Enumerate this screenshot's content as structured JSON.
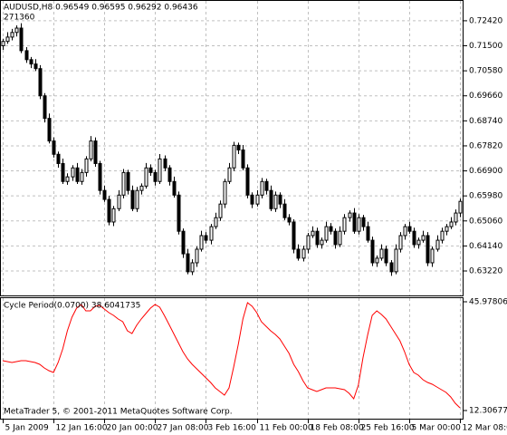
{
  "chart_data": [
    {
      "type": "candlestick",
      "title": "AUDUSD,H8 0.96549 0.96595 0.96292 0.96436",
      "subtitle": "271360",
      "color": "#000000",
      "up_fill": "#ffffff",
      "down_fill": "#000000",
      "grid": true,
      "xlim": [
        -0.59,
        99.78
      ],
      "ylim": [
        0.6232,
        0.7315
      ],
      "xticks": [
        {
          "value": 0,
          "label": "5 Jan 2009"
        },
        {
          "value": 11,
          "label": "12 Jan 16:00"
        },
        {
          "value": 22,
          "label": "20 Jan 00:00"
        },
        {
          "value": 33,
          "label": "27 Jan 08:00"
        },
        {
          "value": 44,
          "label": "3 Feb 16:00"
        },
        {
          "value": 55,
          "label": "11 Feb 00:00"
        },
        {
          "value": 66,
          "label": "18 Feb 08:00"
        },
        {
          "value": 77,
          "label": "25 Feb 16:00"
        },
        {
          "value": 88,
          "label": "5 Mar 00:00"
        },
        {
          "value": 99,
          "label": "12 Mar 08:00"
        }
      ],
      "yticks": [
        {
          "value": 0.7242,
          "label": "0.72420"
        },
        {
          "value": 0.715,
          "label": "0.71500"
        },
        {
          "value": 0.7058,
          "label": "0.70580"
        },
        {
          "value": 0.6966,
          "label": "0.69660"
        },
        {
          "value": 0.6874,
          "label": "0.68740"
        },
        {
          "value": 0.6782,
          "label": "0.67820"
        },
        {
          "value": 0.669,
          "label": "0.66900"
        },
        {
          "value": 0.6598,
          "label": "0.65980"
        },
        {
          "value": 0.6506,
          "label": "0.65060"
        },
        {
          "value": 0.6414,
          "label": "0.64140"
        },
        {
          "value": 0.6322,
          "label": "0.63220"
        }
      ],
      "open": [
        0.715,
        0.7166,
        0.7182,
        0.7199,
        0.7215,
        0.7132,
        0.7099,
        0.7083,
        0.7066,
        0.6966,
        0.6883,
        0.68,
        0.6751,
        0.6717,
        0.6651,
        0.6668,
        0.6701,
        0.6651,
        0.6684,
        0.6734,
        0.68,
        0.6717,
        0.6618,
        0.6585,
        0.6502,
        0.6551,
        0.6601,
        0.6684,
        0.6618,
        0.6551,
        0.6618,
        0.6634,
        0.6701,
        0.6684,
        0.6651,
        0.6734,
        0.6701,
        0.6651,
        0.6601,
        0.6468,
        0.6385,
        0.6319,
        0.6352,
        0.6402,
        0.6452,
        0.6435,
        0.6485,
        0.6518,
        0.6568,
        0.6651,
        0.6701,
        0.6784,
        0.6767,
        0.6701,
        0.6601,
        0.6568,
        0.6601,
        0.6651,
        0.6618,
        0.6551,
        0.6601,
        0.6568,
        0.6518,
        0.6502,
        0.6402,
        0.6369,
        0.6402,
        0.6452,
        0.6468,
        0.6419,
        0.6435,
        0.6485,
        0.6468,
        0.6419,
        0.6468,
        0.6518,
        0.6535,
        0.6468,
        0.6518,
        0.6485,
        0.6435,
        0.6352,
        0.6369,
        0.6402,
        0.6352,
        0.6319,
        0.6402,
        0.6452,
        0.6485,
        0.6468,
        0.6419,
        0.6435,
        0.6452,
        0.6352,
        0.6402,
        0.6435,
        0.6468,
        0.6485,
        0.6502,
        0.6535
      ],
      "high": [
        0.7176,
        0.72,
        0.7212,
        0.7225,
        0.7233,
        0.7145,
        0.7109,
        0.7101,
        0.7079,
        0.6976,
        0.6901,
        0.6813,
        0.6761,
        0.6735,
        0.6681,
        0.6711,
        0.6719,
        0.6697,
        0.6744,
        0.6818,
        0.6813,
        0.6727,
        0.6636,
        0.6598,
        0.6561,
        0.6619,
        0.6697,
        0.6694,
        0.6636,
        0.6631,
        0.6644,
        0.6719,
        0.6714,
        0.6694,
        0.6752,
        0.6747,
        0.6711,
        0.6669,
        0.6614,
        0.6478,
        0.6403,
        0.6365,
        0.6412,
        0.647,
        0.6465,
        0.6495,
        0.6536,
        0.6581,
        0.6661,
        0.6719,
        0.6797,
        0.6794,
        0.6785,
        0.6714,
        0.6611,
        0.6619,
        0.6664,
        0.6661,
        0.6636,
        0.6614,
        0.6611,
        0.6586,
        0.6531,
        0.6512,
        0.642,
        0.6415,
        0.6462,
        0.6486,
        0.6481,
        0.6445,
        0.6503,
        0.6498,
        0.6478,
        0.6486,
        0.6531,
        0.6545,
        0.6553,
        0.6531,
        0.6528,
        0.6503,
        0.6448,
        0.6379,
        0.642,
        0.6415,
        0.6362,
        0.642,
        0.6465,
        0.6495,
        0.6503,
        0.6481,
        0.6445,
        0.647,
        0.6465,
        0.6412,
        0.6453,
        0.6481,
        0.6495,
        0.652,
        0.6548,
        0.6588
      ],
      "low": [
        0.7135,
        0.7157,
        0.717,
        0.7184,
        0.7123,
        0.7087,
        0.7068,
        0.7057,
        0.6954,
        0.6868,
        0.6791,
        0.6739,
        0.6702,
        0.6642,
        0.6639,
        0.6653,
        0.6642,
        0.6639,
        0.6669,
        0.6725,
        0.6705,
        0.6603,
        0.6576,
        0.649,
        0.6487,
        0.6542,
        0.6589,
        0.6603,
        0.6542,
        0.6539,
        0.6603,
        0.6625,
        0.6672,
        0.6636,
        0.6642,
        0.6689,
        0.6636,
        0.6592,
        0.6456,
        0.637,
        0.631,
        0.6307,
        0.6337,
        0.6393,
        0.6423,
        0.642,
        0.6476,
        0.6506,
        0.6553,
        0.6642,
        0.6689,
        0.6752,
        0.6692,
        0.6589,
        0.6553,
        0.6559,
        0.6589,
        0.6603,
        0.6542,
        0.6539,
        0.6553,
        0.6509,
        0.649,
        0.6387,
        0.636,
        0.6357,
        0.6387,
        0.6443,
        0.6407,
        0.6404,
        0.6426,
        0.6456,
        0.6404,
        0.641,
        0.6456,
        0.6503,
        0.6459,
        0.6456,
        0.647,
        0.6426,
        0.634,
        0.6337,
        0.636,
        0.634,
        0.6304,
        0.631,
        0.639,
        0.6437,
        0.6459,
        0.6407,
        0.6404,
        0.6426,
        0.634,
        0.6337,
        0.6393,
        0.6423,
        0.6453,
        0.6476,
        0.649,
        0.652
      ],
      "close": [
        0.7166,
        0.7182,
        0.7199,
        0.7215,
        0.7132,
        0.7099,
        0.7083,
        0.7066,
        0.6966,
        0.6883,
        0.68,
        0.6751,
        0.6717,
        0.6651,
        0.6668,
        0.6701,
        0.6651,
        0.6684,
        0.6734,
        0.68,
        0.6717,
        0.6618,
        0.6585,
        0.6502,
        0.6551,
        0.6601,
        0.6684,
        0.6618,
        0.6551,
        0.6618,
        0.6634,
        0.6701,
        0.6684,
        0.6651,
        0.6734,
        0.6701,
        0.6651,
        0.6601,
        0.6468,
        0.6385,
        0.6319,
        0.6352,
        0.6402,
        0.6452,
        0.6435,
        0.6485,
        0.6518,
        0.6568,
        0.6651,
        0.6701,
        0.6784,
        0.6767,
        0.6701,
        0.6601,
        0.6568,
        0.6601,
        0.6651,
        0.6618,
        0.6551,
        0.6601,
        0.6568,
        0.6518,
        0.6502,
        0.6402,
        0.6369,
        0.6402,
        0.6452,
        0.6468,
        0.6419,
        0.6435,
        0.6485,
        0.6468,
        0.6419,
        0.6468,
        0.6518,
        0.6535,
        0.6468,
        0.6518,
        0.6485,
        0.6435,
        0.6352,
        0.6369,
        0.6402,
        0.6352,
        0.6319,
        0.6402,
        0.6452,
        0.6485,
        0.6468,
        0.6419,
        0.6435,
        0.6452,
        0.6352,
        0.6402,
        0.6435,
        0.6468,
        0.6485,
        0.6502,
        0.6535,
        0.6578
      ]
    },
    {
      "type": "line",
      "title": "Cycle Period(0.0700) 38.6041735",
      "color": "#ff0000",
      "xlim": [
        -0.59,
        99.78
      ],
      "ylim": [
        9.78,
        47.1
      ],
      "yticks": [
        45.9780621,
        12.3067732
      ],
      "values": [
        27.74,
        27.46,
        27.18,
        27.46,
        27.74,
        27.74,
        27.46,
        27.18,
        26.62,
        25.5,
        24.65,
        24.09,
        27.18,
        31.39,
        37.0,
        41.21,
        44.02,
        45.14,
        43.17,
        43.17,
        44.58,
        44.86,
        43.73,
        42.61,
        41.77,
        40.65,
        39.81,
        37.0,
        36.16,
        38.68,
        40.65,
        42.33,
        44.02,
        45.14,
        44.3,
        41.77,
        38.96,
        36.16,
        33.35,
        30.55,
        28.3,
        26.62,
        25.22,
        23.81,
        22.41,
        21.01,
        19.32,
        18.2,
        17.08,
        19.32,
        25.78,
        32.79,
        40.65,
        45.7,
        44.58,
        42.61,
        39.81,
        38.4,
        37.0,
        35.88,
        34.48,
        32.23,
        29.99,
        26.62,
        24.37,
        21.57,
        19.32,
        18.76,
        18.2,
        18.76,
        19.32,
        19.32,
        19.32,
        19.04,
        18.76,
        17.64,
        15.96,
        20.16,
        28.58,
        35.6,
        41.77,
        43.17,
        42.05,
        40.65,
        38.4,
        36.16,
        33.91,
        30.55,
        26.62,
        24.09,
        23.25,
        21.85,
        21.01,
        20.45,
        19.6,
        18.76,
        17.92,
        16.52,
        14.55,
        13.15
      ]
    }
  ],
  "footer": "MetaTrader 5, © 2001-2011 MetaQuotes Software Corp."
}
